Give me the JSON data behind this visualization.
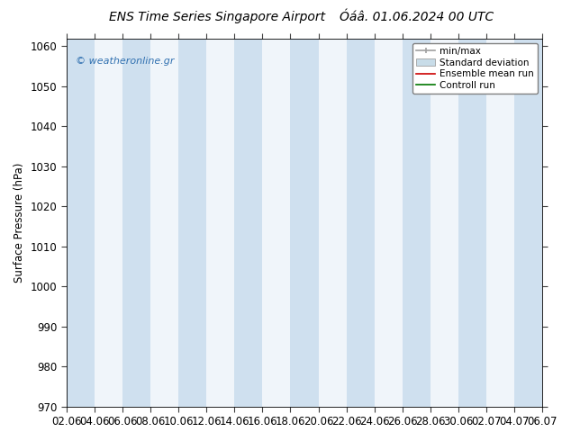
{
  "title_left": "ENS Time Series Singapore Airport",
  "title_right": "Óáâ. 01.06.2024 00 UTC",
  "ylabel": "Surface Pressure (hPa)",
  "ylim": [
    970,
    1062
  ],
  "yticks": [
    970,
    980,
    990,
    1000,
    1010,
    1020,
    1030,
    1040,
    1050,
    1060
  ],
  "x_labels": [
    "02.06",
    "04.06",
    "06.06",
    "08.06",
    "10.06",
    "12.06",
    "14.06",
    "16.06",
    "18.06",
    "20.06",
    "22.06",
    "24.06",
    "26.06",
    "28.06",
    "30.06",
    "02.07",
    "04.07",
    "06.07"
  ],
  "x_values": [
    0,
    2,
    4,
    6,
    8,
    10,
    12,
    14,
    16,
    18,
    20,
    22,
    24,
    26,
    28,
    30,
    32,
    34
  ],
  "bg_color": "#ffffff",
  "plot_bg_color": "#f0f5fa",
  "strip_color": "#cfe0ef",
  "strip_positions": [
    0,
    4,
    8,
    14,
    20,
    28
  ],
  "strip_widths": [
    2,
    2,
    2,
    2,
    2,
    2
  ],
  "watermark_text": "© weatheronline.gr",
  "watermark_color": "#3070b0",
  "legend_labels": [
    "min/max",
    "Standard deviation",
    "Ensemble mean run",
    "Controll run"
  ],
  "legend_line_color": "#a0a0a0",
  "legend_patch_color": "#c8dce8",
  "legend_red": "#cc0000",
  "legend_green": "#007700",
  "title_fontsize": 10,
  "tick_fontsize": 8.5,
  "ylabel_fontsize": 8.5
}
